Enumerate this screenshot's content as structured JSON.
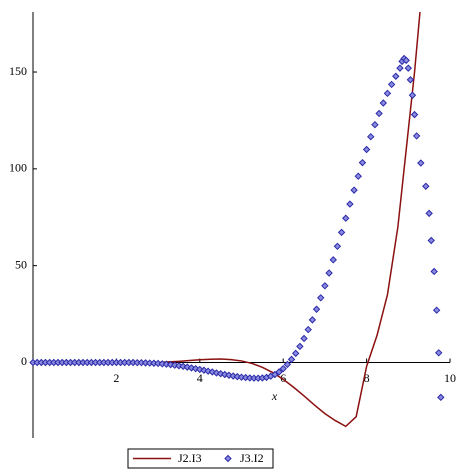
{
  "chart_data": {
    "type": "line+scatter",
    "x_label": "x",
    "xlim": [
      0,
      10
    ],
    "xticks": [
      2,
      4,
      6,
      8,
      10
    ],
    "ylim": [
      -39,
      181
    ],
    "yticks": [
      0,
      50,
      100,
      150
    ],
    "legend": "bottom",
    "series": [
      {
        "name": "J2.I3",
        "type": "line",
        "color": "#8b1010",
        "x": [
          0,
          0.5,
          1,
          1.5,
          2,
          2.5,
          3,
          3.25,
          3.5,
          3.75,
          4,
          4.25,
          4.5,
          4.75,
          5,
          5.25,
          5.5,
          5.75,
          6,
          6.25,
          6.5,
          6.75,
          7,
          7.25,
          7.5,
          7.75,
          8,
          8.25,
          8.5,
          8.75,
          9,
          9.15,
          9.28
        ],
        "values": [
          0,
          0,
          0,
          0,
          0,
          0,
          0,
          0.3,
          0.6,
          1,
          1.4,
          1.7,
          1.8,
          1.5,
          0.8,
          -0.5,
          -2.5,
          -5.2,
          -8.7,
          -12.8,
          -17.3,
          -22,
          -26.4,
          -30,
          -33,
          -28,
          -2,
          14,
          35,
          70,
          120,
          150,
          181
        ]
      },
      {
        "name": "J3.I2",
        "type": "scatter",
        "color": "#2a2aa8",
        "x": [
          0,
          0.1,
          0.2,
          0.3,
          0.4,
          0.5,
          0.6,
          0.7,
          0.8,
          0.9,
          1,
          1.1,
          1.2,
          1.3,
          1.4,
          1.5,
          1.6,
          1.7,
          1.8,
          1.9,
          2,
          2.1,
          2.2,
          2.3,
          2.4,
          2.5,
          2.6,
          2.7,
          2.8,
          2.9,
          3,
          3.1,
          3.2,
          3.3,
          3.4,
          3.5,
          3.6,
          3.7,
          3.8,
          3.9,
          4,
          4.1,
          4.2,
          4.3,
          4.4,
          4.5,
          4.6,
          4.7,
          4.8,
          4.9,
          5,
          5.1,
          5.2,
          5.3,
          5.4,
          5.5,
          5.6,
          5.7,
          5.8,
          5.9,
          6,
          6.1,
          6.2,
          6.3,
          6.4,
          6.5,
          6.6,
          6.7,
          6.8,
          6.9,
          7,
          7.1,
          7.2,
          7.3,
          7.4,
          7.5,
          7.6,
          7.7,
          7.8,
          7.9,
          8,
          8.1,
          8.2,
          8.3,
          8.4,
          8.5,
          8.6,
          8.7,
          8.8,
          8.85,
          8.9,
          8.95,
          9,
          9.05,
          9.1,
          9.15,
          9.2,
          9.3,
          9.42,
          9.5,
          9.55,
          9.62,
          9.68,
          9.73,
          9.78
        ],
        "values": [
          0,
          0,
          0,
          0,
          0,
          0,
          0,
          0,
          0,
          0,
          0,
          0,
          0,
          0,
          0,
          0,
          0,
          0,
          0,
          0,
          0,
          0,
          0,
          0,
          0,
          -0.1,
          -0.1,
          -0.2,
          -0.3,
          -0.4,
          -0.5,
          -0.7,
          -0.9,
          -1.1,
          -1.4,
          -1.7,
          -2,
          -2.4,
          -2.8,
          -3.2,
          -3.6,
          -4,
          -4.5,
          -4.9,
          -5.4,
          -5.8,
          -6.2,
          -6.6,
          -7,
          -7.3,
          -7.6,
          -7.8,
          -8,
          -8.1,
          -8.1,
          -8,
          -7.7,
          -7.1,
          -6.2,
          -4.9,
          -3.2,
          -1,
          1.6,
          4.7,
          8.3,
          12.4,
          17,
          22,
          27.5,
          33.4,
          39.6,
          46.2,
          53,
          60,
          67.2,
          74.5,
          81.8,
          89,
          96.2,
          103.2,
          110,
          116.6,
          122.8,
          128.6,
          134,
          139,
          143.6,
          147.8,
          152,
          155.5,
          157,
          156,
          152,
          146,
          138,
          128,
          117,
          103,
          91,
          77,
          63,
          47,
          27,
          5,
          -18
        ]
      }
    ]
  }
}
